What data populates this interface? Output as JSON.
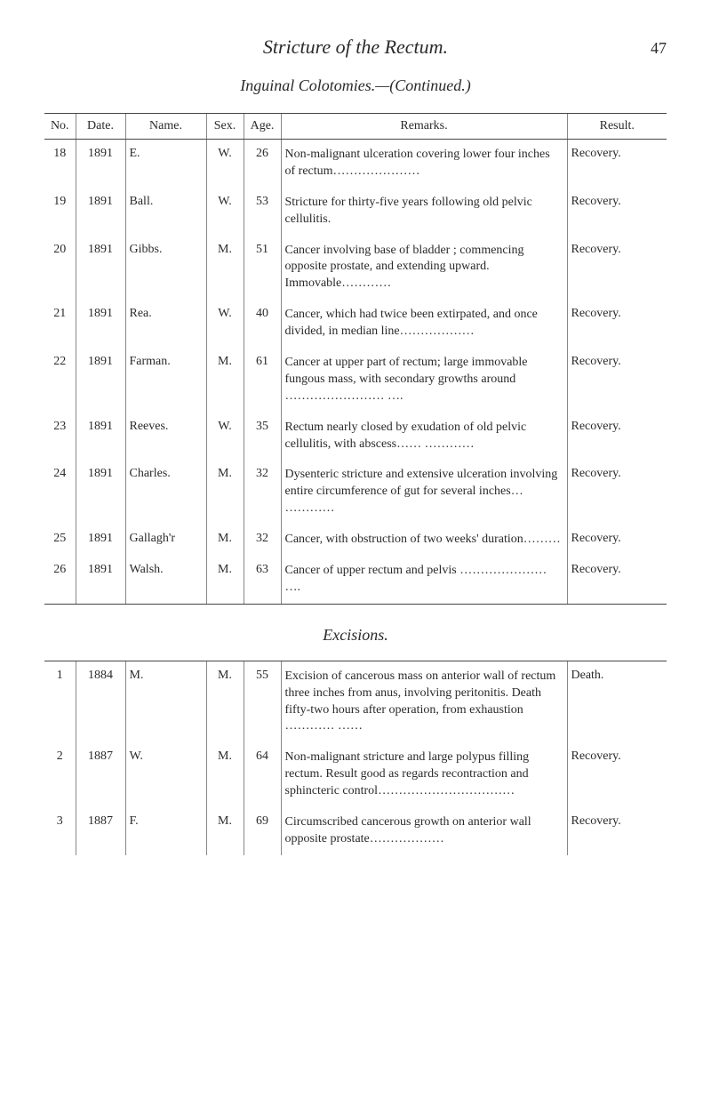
{
  "page": {
    "title": "Stricture of the Rectum.",
    "number": "47",
    "subtitle": "Inguinal Colotomies.—(Continued.)"
  },
  "table1": {
    "headers": [
      "No.",
      "Date.",
      "Name.",
      "Sex.",
      "Age.",
      "Remarks.",
      "Result."
    ],
    "rows": [
      {
        "no": "18",
        "date": "1891",
        "name": "E.",
        "sex": "W.",
        "age": "26",
        "remarks": "Non-malignant ulceration covering lower four inches of rectum…………………",
        "result": "Recovery."
      },
      {
        "no": "19",
        "date": "1891",
        "name": "Ball.",
        "sex": "W.",
        "age": "53",
        "remarks": "Stricture for thirty-five years following old pelvic cellulitis.",
        "result": "Recovery."
      },
      {
        "no": "20",
        "date": "1891",
        "name": "Gibbs.",
        "sex": "M.",
        "age": "51",
        "remarks": "Cancer involving base of bladder ; commencing opposite prostate, and extending upward.  Immovable…………",
        "result": "Recovery."
      },
      {
        "no": "21",
        "date": "1891",
        "name": "Rea.",
        "sex": "W.",
        "age": "40",
        "remarks": "Cancer, which had twice been extirpated, and once divided, in median line………………",
        "result": "Recovery."
      },
      {
        "no": "22",
        "date": "1891",
        "name": "Farman.",
        "sex": "M.",
        "age": "61",
        "remarks": "Cancer at upper part of rectum; large immovable fungous mass, with secondary growths around …………………… ….",
        "result": "Recovery."
      },
      {
        "no": "23",
        "date": "1891",
        "name": "Reeves.",
        "sex": "W.",
        "age": "35",
        "remarks": "Rectum nearly closed by exudation of old pelvic cellulitis, with abscess…… …………",
        "result": "Recovery."
      },
      {
        "no": "24",
        "date": "1891",
        "name": "Charles.",
        "sex": "M.",
        "age": "32",
        "remarks": "Dysenteric stricture and extensive ulceration involving entire circumference of gut for several inches…  …………",
        "result": "Recovery."
      },
      {
        "no": "25",
        "date": "1891",
        "name": "Gallagh'r",
        "sex": "M.",
        "age": "32",
        "remarks": "Cancer, with obstruction of two weeks' duration………",
        "result": "Recovery."
      },
      {
        "no": "26",
        "date": "1891",
        "name": "Walsh.",
        "sex": "M.",
        "age": "63",
        "remarks": "Cancer of upper rectum and pelvis ………………… ….",
        "result": "Recovery."
      }
    ]
  },
  "section_heading": "Excisions.",
  "table2": {
    "rows": [
      {
        "no": "1",
        "date": "1884",
        "name": "M.",
        "sex": "M.",
        "age": "55",
        "remarks": "Excision of cancerous mass on anterior wall of rectum three inches from anus, involving peritonitis.  Death fifty-two hours after operation, from exhaustion ………… ……",
        "result": "Death."
      },
      {
        "no": "2",
        "date": "1887",
        "name": "W.",
        "sex": "M.",
        "age": "64",
        "remarks": "Non-malignant stricture and large polypus filling rectum. Result good as regards recontraction and sphincteric control……………………………",
        "result": "Recovery."
      },
      {
        "no": "3",
        "date": "1887",
        "name": "F.",
        "sex": "M.",
        "age": "69",
        "remarks": "Circumscribed cancerous growth on anterior wall opposite prostate………………",
        "result": "Recovery."
      }
    ]
  }
}
